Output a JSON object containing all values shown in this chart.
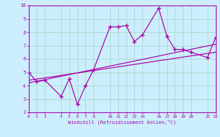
{
  "xlabel": "Windchill (Refroidissement éolien,°C)",
  "background_color": "#cceeff",
  "grid_color": "#aaddcc",
  "line_color": "#aa00aa",
  "x_ticks": [
    0,
    1,
    2,
    4,
    5,
    6,
    7,
    8,
    10,
    11,
    12,
    13,
    14,
    16,
    17,
    18,
    19,
    20,
    22,
    23
  ],
  "ylim": [
    2,
    10
  ],
  "xlim": [
    0,
    23
  ],
  "yticks": [
    2,
    3,
    4,
    5,
    6,
    7,
    8,
    9,
    10
  ],
  "main_x": [
    0,
    1,
    2,
    4,
    5,
    6,
    7,
    8,
    10,
    11,
    12,
    13,
    14,
    16,
    17,
    18,
    19,
    20,
    22,
    23
  ],
  "main_y": [
    5.0,
    4.3,
    4.4,
    3.2,
    4.5,
    2.6,
    4.0,
    5.2,
    8.4,
    8.4,
    8.5,
    7.3,
    7.8,
    9.8,
    7.7,
    6.7,
    6.7,
    6.5,
    6.1,
    7.6
  ],
  "line2_x": [
    0,
    23
  ],
  "line2_y": [
    4.4,
    6.5
  ],
  "line3_x": [
    0,
    23
  ],
  "line3_y": [
    4.2,
    7.1
  ]
}
